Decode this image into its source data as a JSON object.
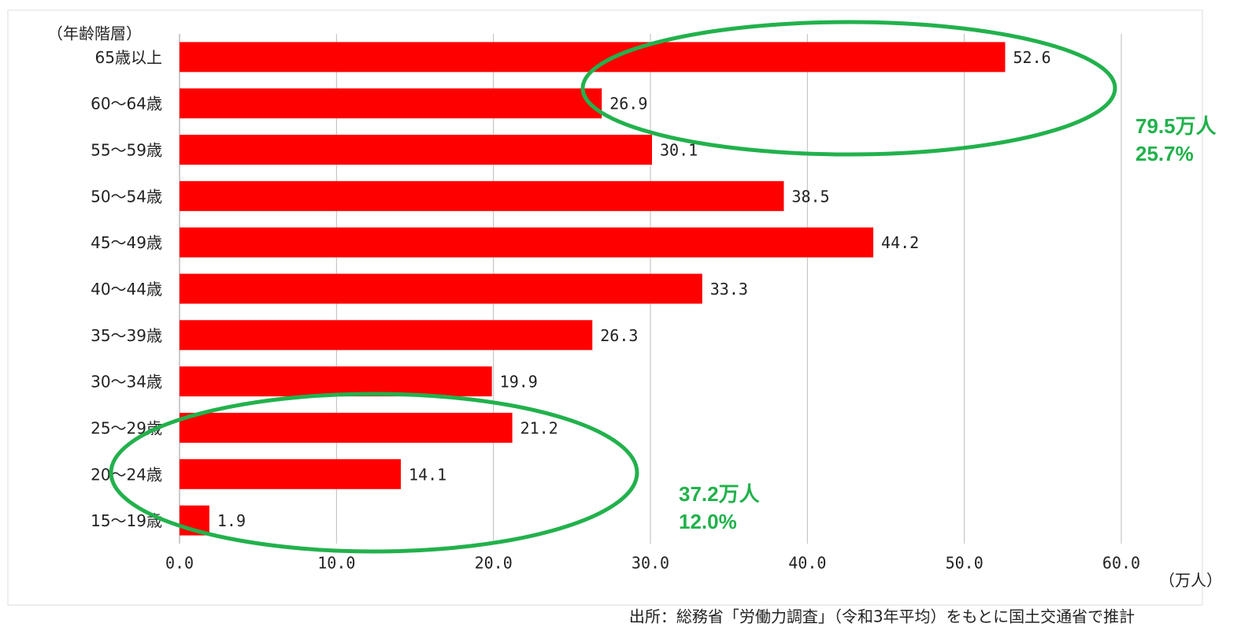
{
  "chart_data": {
    "type": "bar",
    "orientation": "horizontal",
    "y_axis_label": "（年齢階層）",
    "x_axis_label": "（万人）",
    "categories": [
      "65歳以上",
      "60～64歳",
      "55～59歳",
      "50～54歳",
      "45～49歳",
      "40～44歳",
      "35～39歳",
      "30～34歳",
      "25～29歳",
      "20～24歳",
      "15～19歳"
    ],
    "values": [
      52.6,
      26.9,
      30.1,
      38.5,
      44.2,
      33.3,
      26.3,
      19.9,
      21.2,
      14.1,
      1.9
    ],
    "color": "#ff0000",
    "xlim": [
      0,
      60
    ],
    "xticks": [
      {
        "value": 0,
        "label": "0.0"
      },
      {
        "value": 10,
        "label": "10.0"
      },
      {
        "value": 20,
        "label": "20.0"
      },
      {
        "value": 30,
        "label": "30.0"
      },
      {
        "value": 40,
        "label": "40.0"
      },
      {
        "value": 50,
        "label": "50.0"
      },
      {
        "value": 60,
        "label": "60.0"
      }
    ],
    "grid": true,
    "annotations": [
      "79.5万人",
      "25.7%",
      "37.2万人",
      "12.0%"
    ],
    "source": "出所：総務省「労働力調査」（令和3年平均）をもとに国土交通省で推計"
  }
}
